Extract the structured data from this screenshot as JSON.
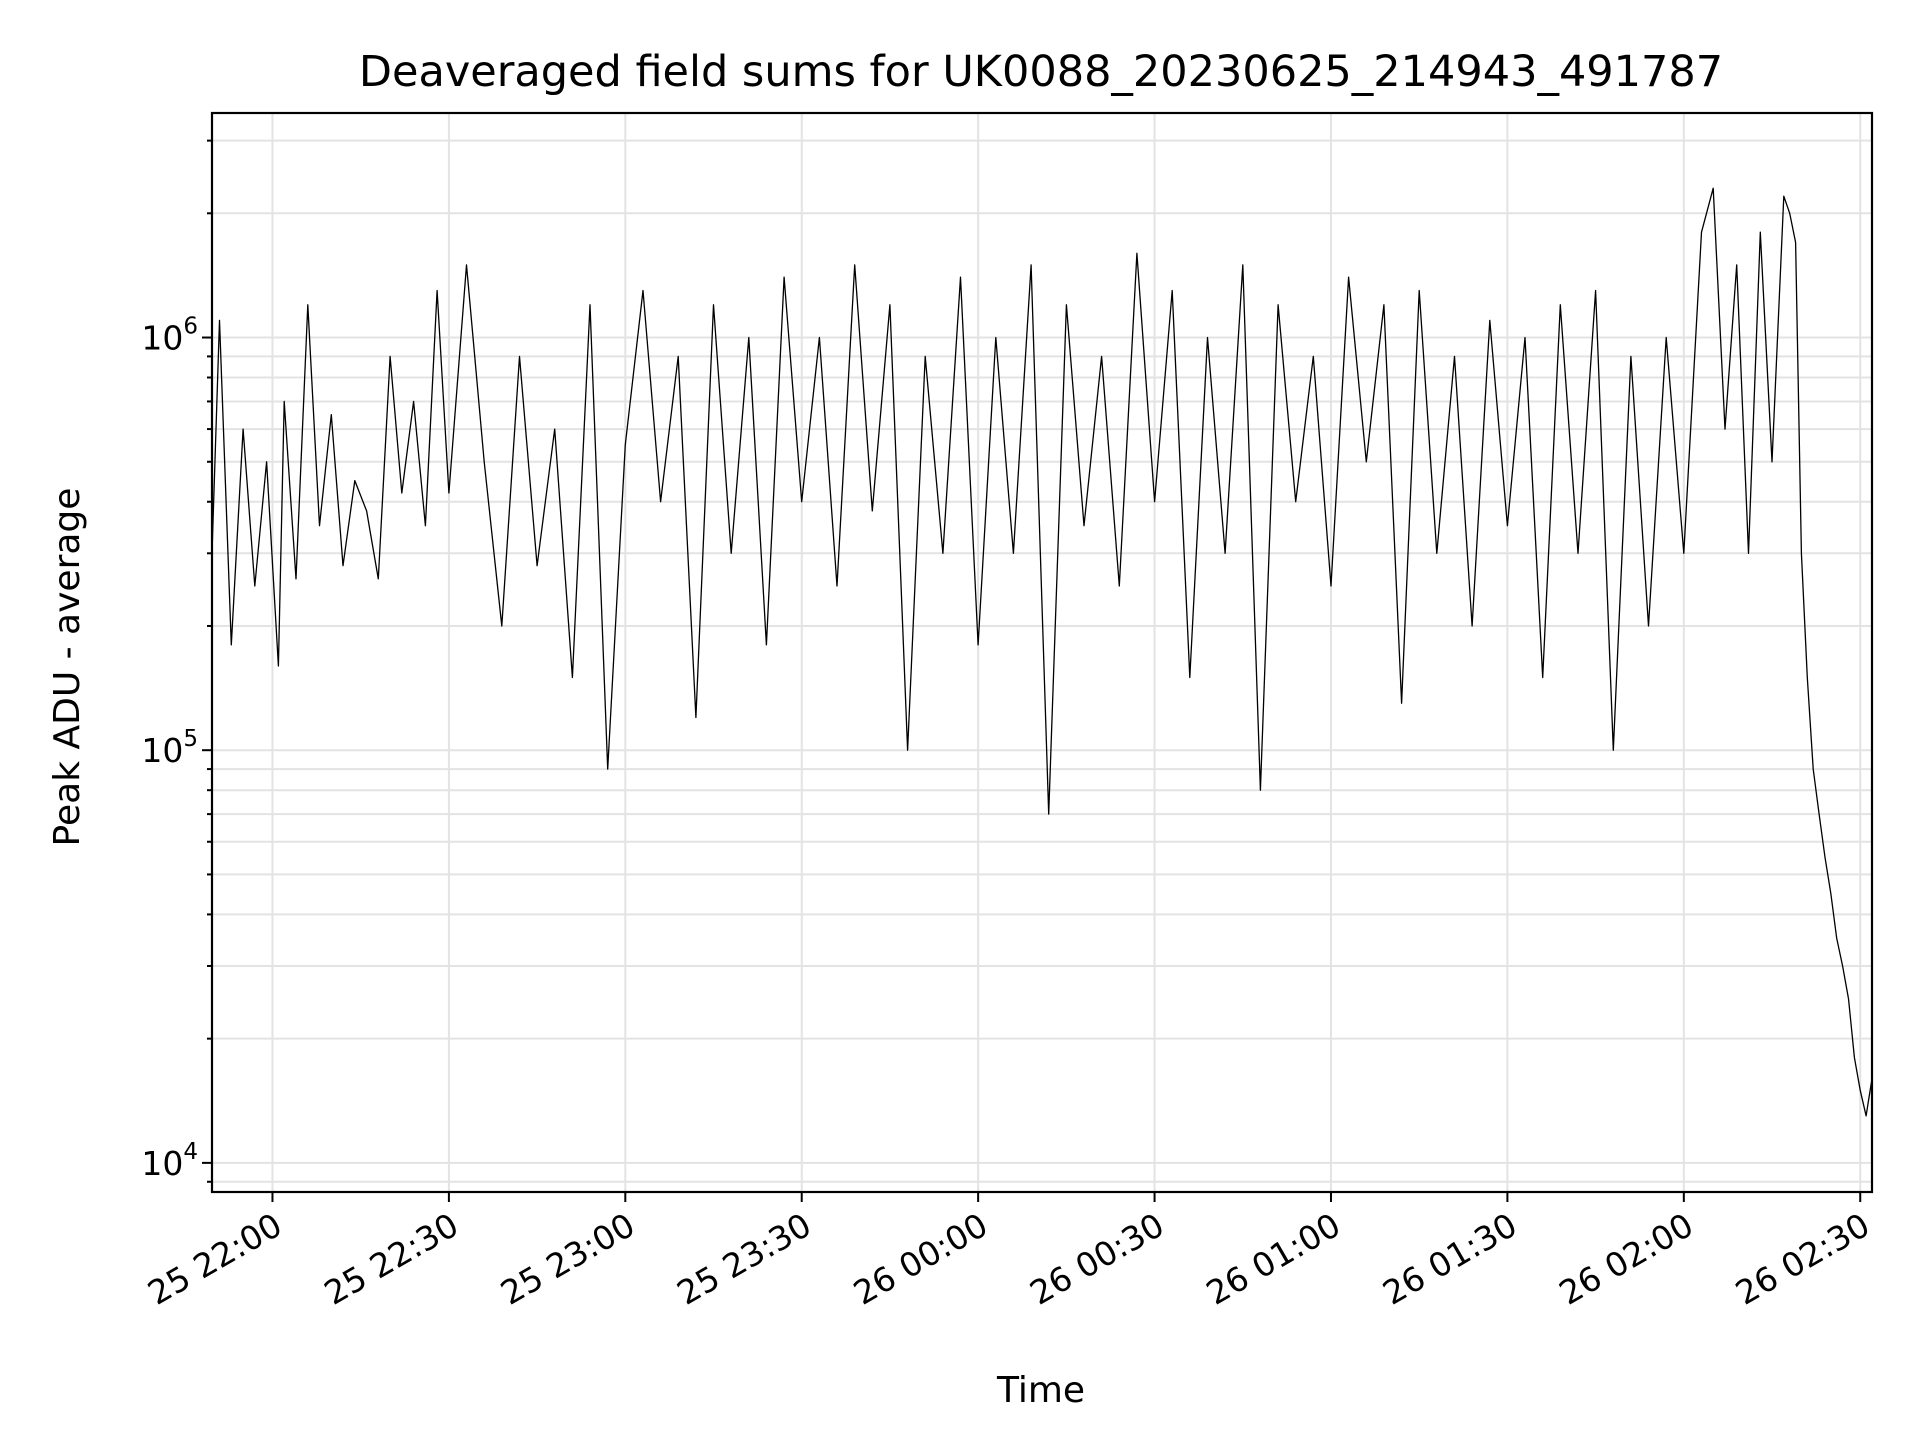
{
  "chart_data": {
    "type": "line",
    "title": "Deaveraged field sums for UK0088_20230625_214943_491787",
    "xlabel": "Time",
    "ylabel": "Peak ADU - average",
    "yscale": "log",
    "xlim": [
      "2023-06-25 21:49:43",
      "2023-06-26 02:32:00"
    ],
    "ylim": [
      8500,
      3500000
    ],
    "x_ticks": [
      "25 22:00",
      "25 22:30",
      "25 23:00",
      "25 23:30",
      "26 00:00",
      "26 00:30",
      "26 01:00",
      "26 01:30",
      "26 02:00",
      "26 02:30"
    ],
    "x_tick_times": [
      "2023-06-25 22:00",
      "2023-06-25 22:30",
      "2023-06-25 23:00",
      "2023-06-25 23:30",
      "2023-06-26 00:00",
      "2023-06-26 00:30",
      "2023-06-26 01:00",
      "2023-06-26 01:30",
      "2023-06-26 02:00",
      "2023-06-26 02:30"
    ],
    "y_ticks": [
      {
        "value": 10000,
        "base": "10",
        "exp": "4"
      },
      {
        "value": 100000,
        "base": "10",
        "exp": "5"
      },
      {
        "value": 1000000,
        "base": "10",
        "exp": "6"
      }
    ],
    "grid": true,
    "series": [
      {
        "color": "#000000",
        "x": [
          "2023-06-25 21:49:43",
          "2023-06-25 21:51",
          "2023-06-25 21:53",
          "2023-06-25 21:55",
          "2023-06-25 21:57",
          "2023-06-25 21:59",
          "2023-06-25 22:01",
          "2023-06-25 22:02",
          "2023-06-25 22:04",
          "2023-06-25 22:06",
          "2023-06-25 22:08",
          "2023-06-25 22:10",
          "2023-06-25 22:12",
          "2023-06-25 22:14",
          "2023-06-25 22:16",
          "2023-06-25 22:18",
          "2023-06-25 22:20",
          "2023-06-25 22:22",
          "2023-06-25 22:24",
          "2023-06-25 22:26",
          "2023-06-25 22:28",
          "2023-06-25 22:30",
          "2023-06-25 22:33",
          "2023-06-25 22:36",
          "2023-06-25 22:39",
          "2023-06-25 22:42",
          "2023-06-25 22:45",
          "2023-06-25 22:48",
          "2023-06-25 22:51",
          "2023-06-25 22:54",
          "2023-06-25 22:57",
          "2023-06-25 23:00",
          "2023-06-25 23:03",
          "2023-06-25 23:06",
          "2023-06-25 23:09",
          "2023-06-25 23:12",
          "2023-06-25 23:15",
          "2023-06-25 23:18",
          "2023-06-25 23:21",
          "2023-06-25 23:24",
          "2023-06-25 23:27",
          "2023-06-25 23:30",
          "2023-06-25 23:33",
          "2023-06-25 23:36",
          "2023-06-25 23:39",
          "2023-06-25 23:42",
          "2023-06-25 23:45",
          "2023-06-25 23:48",
          "2023-06-25 23:51",
          "2023-06-25 23:54",
          "2023-06-25 23:57",
          "2023-06-26 00:00",
          "2023-06-26 00:03",
          "2023-06-26 00:06",
          "2023-06-26 00:09",
          "2023-06-26 00:12",
          "2023-06-26 00:15",
          "2023-06-26 00:18",
          "2023-06-26 00:21",
          "2023-06-26 00:24",
          "2023-06-26 00:27",
          "2023-06-26 00:30",
          "2023-06-26 00:33",
          "2023-06-26 00:36",
          "2023-06-26 00:39",
          "2023-06-26 00:42",
          "2023-06-26 00:45",
          "2023-06-26 00:48",
          "2023-06-26 00:51",
          "2023-06-26 00:54",
          "2023-06-26 00:57",
          "2023-06-26 01:00",
          "2023-06-26 01:03",
          "2023-06-26 01:06",
          "2023-06-26 01:09",
          "2023-06-26 01:12",
          "2023-06-26 01:15",
          "2023-06-26 01:18",
          "2023-06-26 01:21",
          "2023-06-26 01:24",
          "2023-06-26 01:27",
          "2023-06-26 01:30",
          "2023-06-26 01:33",
          "2023-06-26 01:36",
          "2023-06-26 01:39",
          "2023-06-26 01:42",
          "2023-06-26 01:45",
          "2023-06-26 01:48",
          "2023-06-26 01:51",
          "2023-06-26 01:54",
          "2023-06-26 01:57",
          "2023-06-26 02:00",
          "2023-06-26 02:03",
          "2023-06-26 02:05",
          "2023-06-26 02:07",
          "2023-06-26 02:09",
          "2023-06-26 02:11",
          "2023-06-26 02:13",
          "2023-06-26 02:15",
          "2023-06-26 02:17",
          "2023-06-26 02:18",
          "2023-06-26 02:19",
          "2023-06-26 02:20",
          "2023-06-26 02:21",
          "2023-06-26 02:22",
          "2023-06-26 02:23",
          "2023-06-26 02:24",
          "2023-06-26 02:25",
          "2023-06-26 02:26",
          "2023-06-26 02:27",
          "2023-06-26 02:28",
          "2023-06-26 02:29",
          "2023-06-26 02:30",
          "2023-06-26 02:31",
          "2023-06-26 02:32"
        ],
        "values": [
          300000,
          1100000,
          180000,
          600000,
          250000,
          500000,
          160000,
          700000,
          260000,
          1200000,
          350000,
          650000,
          280000,
          450000,
          380000,
          260000,
          900000,
          420000,
          700000,
          350000,
          1300000,
          420000,
          1500000,
          500000,
          200000,
          900000,
          280000,
          600000,
          150000,
          1200000,
          90000,
          550000,
          1300000,
          400000,
          900000,
          120000,
          1200000,
          300000,
          1000000,
          180000,
          1400000,
          400000,
          1000000,
          250000,
          1500000,
          380000,
          1200000,
          100000,
          900000,
          300000,
          1400000,
          180000,
          1000000,
          300000,
          1500000,
          70000,
          1200000,
          350000,
          900000,
          250000,
          1600000,
          400000,
          1300000,
          150000,
          1000000,
          300000,
          1500000,
          80000,
          1200000,
          400000,
          900000,
          250000,
          1400000,
          500000,
          1200000,
          130000,
          1300000,
          300000,
          900000,
          200000,
          1100000,
          350000,
          1000000,
          150000,
          1200000,
          300000,
          1300000,
          100000,
          900000,
          200000,
          1000000,
          300000,
          1800000,
          2300000,
          600000,
          1500000,
          300000,
          1800000,
          500000,
          2200000,
          2000000,
          1700000,
          300000,
          150000,
          90000,
          70000,
          55000,
          45000,
          35000,
          30000,
          25000,
          18000,
          15000,
          13000,
          16000
        ]
      }
    ]
  }
}
